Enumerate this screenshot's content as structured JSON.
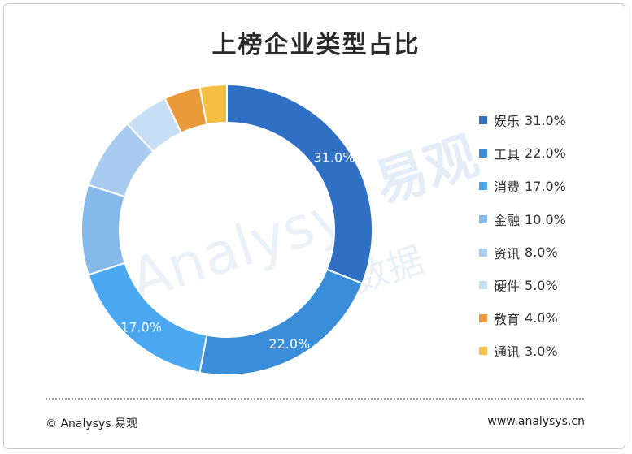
{
  "chart_data": {
    "type": "pie",
    "title": "上榜企业类型占比",
    "categories": [
      "娱乐",
      "工具",
      "消费",
      "金融",
      "资讯",
      "硬件",
      "教育",
      "通讯"
    ],
    "values": [
      31.0,
      22.0,
      17.0,
      10.0,
      8.0,
      5.0,
      4.0,
      3.0
    ],
    "colors": [
      "#2f6fc4",
      "#3a8ed9",
      "#4ba7ef",
      "#86b8ea",
      "#a9cbf0",
      "#c7dff5",
      "#ea9a3a",
      "#f5bf45"
    ],
    "data_labels": [
      "31.0%",
      "22.0%",
      "17.0%",
      "",
      "",
      "",
      "",
      ""
    ],
    "legend": [
      {
        "name": "娱乐",
        "value": "31.0%"
      },
      {
        "name": "工具",
        "value": "22.0%"
      },
      {
        "name": "消费",
        "value": "17.0%"
      },
      {
        "name": "金融",
        "value": "10.0%"
      },
      {
        "name": "资讯",
        "value": "8.0%"
      },
      {
        "name": "硬件",
        "value": "5.0%"
      },
      {
        "name": "教育",
        "value": "4.0%"
      },
      {
        "name": "通讯",
        "value": "3.0%"
      }
    ],
    "legend_position": "right",
    "donut": true
  },
  "footer": {
    "copyright": "© Analysys 易观",
    "url": "www.analysys.cn"
  },
  "watermark": {
    "brand_cn": "易观",
    "brand_en": "Analysys",
    "tagline": "数据",
    "color": "#e2ecf7"
  }
}
